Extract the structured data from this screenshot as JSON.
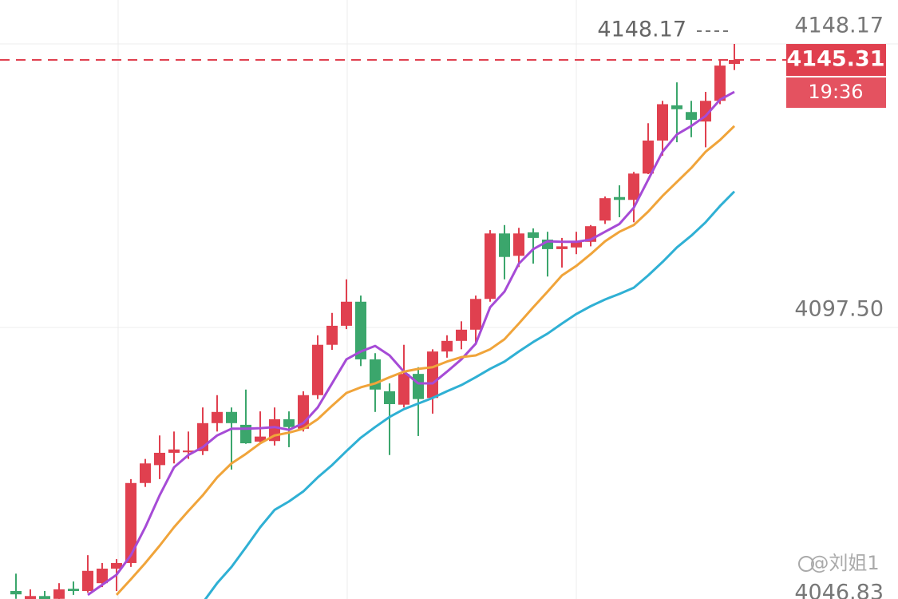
{
  "chart_data": {
    "type": "candlestick",
    "ylim": [
      4046.83,
      4156.02
    ],
    "yticks": [
      4046.83,
      {
        "value": 4097.5,
        "label": "4097.50"
      },
      4148.17
    ],
    "grid": true,
    "up_color": "#e0404f",
    "down_color": "#3ba66c",
    "open": [
      4050.4,
      4048.7,
      4049.5,
      4049.0,
      4050.8,
      4050.4,
      4051.8,
      4054.4,
      4055.4,
      4069.7,
      4072.9,
      4075.1,
      4075.2,
      4075.4,
      4080.4,
      4082.4,
      4080.1,
      4077.1,
      4077.2,
      4081.1,
      4079.4,
      4085.4,
      4094.4,
      4097.8,
      4102.1,
      4091.8,
      4086.1,
      4083.7,
      4089.2,
      4084.9,
      4093.2,
      4095.1,
      4097.1,
      4102.6,
      4114.3,
      4110.3,
      4114.5,
      4113.2,
      4111.5,
      4111.8,
      4112.8,
      4116.6,
      4120.8,
      4120.3,
      4125.0,
      4130.9,
      4137.2,
      4136.0,
      4134.3,
      4138.0,
      4144.6
    ],
    "high": [
      4053.5,
      4050.7,
      4050.4,
      4051.8,
      4052.1,
      4056.8,
      4055.4,
      4056.1,
      4070.4,
      4074.0,
      4078.2,
      4078.9,
      4078.9,
      4083.2,
      4085.4,
      4083.2,
      4086.4,
      4082.5,
      4083.2,
      4082.5,
      4086.1,
      4096.1,
      4100.1,
      4106.1,
      4103.2,
      4092.9,
      4087.5,
      4094.4,
      4090.4,
      4093.6,
      4096.1,
      4098.6,
      4103.2,
      4114.9,
      4115.8,
      4115.3,
      4115.2,
      4114.6,
      4113.5,
      4114.6,
      4115.8,
      4120.9,
      4122.9,
      4125.3,
      4134.0,
      4138.0,
      4141.3,
      4138.0,
      4139.6,
      4145.3,
      4148.17
    ],
    "low": [
      4049.0,
      4047.8,
      4047.5,
      4048.7,
      4049.7,
      4050.1,
      4051.1,
      4050.4,
      4054.7,
      4069.0,
      4070.4,
      4073.2,
      4074.0,
      4074.7,
      4078.9,
      4072.1,
      4076.7,
      4076.8,
      4076.4,
      4076.1,
      4078.9,
      4084.7,
      4093.5,
      4097.2,
      4090.6,
      4082.4,
      4074.7,
      4083.2,
      4078.1,
      4082.1,
      4092.1,
      4093.6,
      4094.4,
      4102.1,
      4106.1,
      4108.3,
      4108.9,
      4106.6,
      4108.2,
      4110.6,
      4112.0,
      4116.0,
      4117.2,
      4116.3,
      4124.9,
      4128.2,
      4130.6,
      4131.5,
      4129.7,
      4137.4,
      4143.5
    ],
    "close": [
      4049.8,
      4049.5,
      4048.7,
      4050.7,
      4050.4,
      4054.0,
      4054.4,
      4055.4,
      4069.7,
      4073.2,
      4075.1,
      4075.7,
      4075.5,
      4080.4,
      4082.4,
      4080.4,
      4076.8,
      4078.0,
      4081.1,
      4079.7,
      4085.4,
      4094.4,
      4097.8,
      4102.1,
      4091.8,
      4086.4,
      4083.8,
      4089.2,
      4084.7,
      4093.2,
      4095.1,
      4097.1,
      4102.6,
      4114.3,
      4110.1,
      4114.3,
      4113.5,
      4111.5,
      4112.0,
      4112.8,
      4115.6,
      4120.6,
      4120.3,
      4125.0,
      4130.9,
      4137.4,
      4136.5,
      4134.6,
      4138.0,
      4144.3,
      4145.31
    ],
    "series": [
      {
        "color": "#a64bd6",
        "values": [
          null,
          null,
          null,
          null,
          null,
          4049.7,
          4051.5,
          4053.3,
          4056.8,
          4061.8,
          4067.5,
          4072.5,
          4074.7,
          4076.1,
          4078.2,
          4079.4,
          4079.4,
          4079.5,
          4079.7,
          4079.2,
          4080.4,
          4083.2,
          4087.5,
          4091.8,
          4093.2,
          4094.2,
          4092.5,
          4089.6,
          4087.5,
          4087.5,
          4089.6,
          4091.8,
          4094.6,
          4101.1,
          4103.9,
          4108.9,
          4111.5,
          4112.9,
          4112.8,
          4112.8,
          4113.2,
          4114.6,
          4116.0,
          4118.9,
          4123.9,
          4128.9,
          4132.0,
          4133.5,
          4135.3,
          4138.2,
          4139.6
        ]
      },
      {
        "color": "#f0a43a",
        "values": [
          null,
          null,
          null,
          null,
          null,
          null,
          null,
          4049.7,
          4052.5,
          4055.4,
          4058.5,
          4061.8,
          4064.7,
          4067.5,
          4070.7,
          4073.2,
          4074.9,
          4076.8,
          4078.2,
          4078.7,
          4079.4,
          4081.1,
          4083.5,
          4085.8,
          4086.8,
          4087.5,
          4088.6,
          4089.6,
          4090.1,
          4090.4,
          4091.4,
          4092.2,
          4092.5,
          4093.6,
          4095.4,
          4098.2,
          4101.1,
          4103.9,
          4106.8,
          4108.5,
          4110.6,
          4112.9,
          4114.6,
          4115.8,
          4118.2,
          4121.0,
          4123.5,
          4126.0,
          4128.9,
          4131.0,
          4133.5
        ]
      },
      {
        "color": "#2fb0d4",
        "values": [
          null,
          null,
          null,
          null,
          null,
          null,
          null,
          null,
          null,
          null,
          null,
          null,
          null,
          4048.3,
          4051.8,
          4054.7,
          4058.2,
          4061.8,
          4064.9,
          4066.4,
          4068.2,
          4070.7,
          4072.9,
          4075.4,
          4077.8,
          4079.7,
          4081.5,
          4082.9,
          4083.9,
          4084.9,
          4086.1,
          4087.2,
          4088.6,
          4090.1,
          4091.4,
          4093.2,
          4094.9,
          4096.4,
          4098.2,
          4099.9,
          4101.3,
          4102.5,
          4103.5,
          4104.6,
          4106.8,
          4109.2,
          4111.8,
          4113.9,
          4116.3,
          4119.2,
          4121.8
        ]
      }
    ],
    "countdown": "19:36",
    "watermark": "@刘姐1"
  }
}
